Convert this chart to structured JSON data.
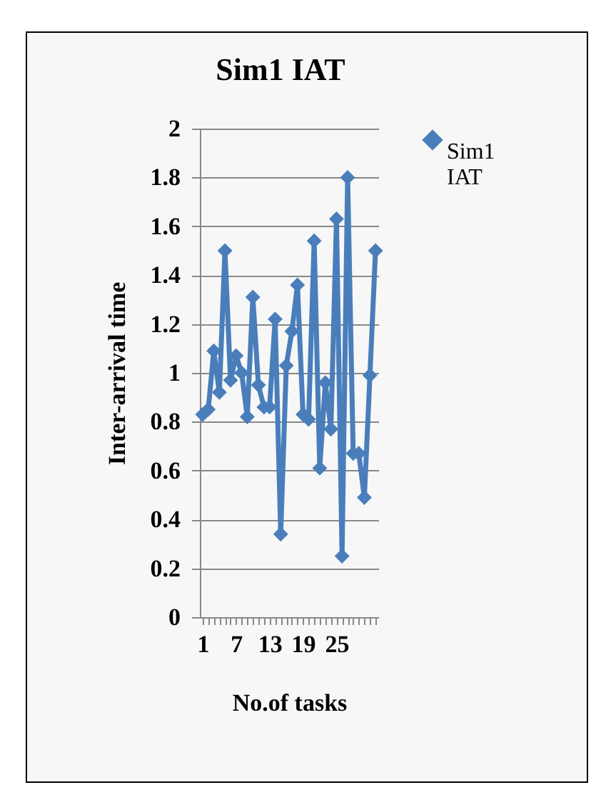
{
  "chart_data": {
    "type": "line",
    "title": "Sim1 IAT",
    "xlabel": "No.of tasks",
    "ylabel": "Inter-arrival time",
    "categories": [
      "1",
      null,
      null,
      null,
      null,
      null,
      "7",
      null,
      null,
      null,
      null,
      null,
      "13",
      null,
      null,
      null,
      null,
      null,
      "19",
      null,
      null,
      null,
      null,
      null,
      "25",
      null,
      null,
      null,
      null,
      null,
      null,
      null
    ],
    "series": [
      {
        "name": "Sim1 IAT",
        "color": "#4a7ebb",
        "values": [
          0.83,
          0.85,
          1.09,
          0.92,
          1.5,
          0.97,
          1.07,
          1.0,
          0.82,
          1.31,
          0.95,
          0.86,
          0.86,
          1.22,
          0.34,
          1.03,
          1.17,
          1.36,
          0.83,
          0.81,
          1.54,
          0.61,
          0.96,
          0.77,
          1.63,
          0.25,
          1.8,
          0.67,
          0.67,
          0.49,
          0.99,
          1.5
        ]
      }
    ],
    "ylim": [
      0,
      2
    ],
    "yticks": [
      0,
      0.2,
      0.4,
      0.6,
      0.8,
      1,
      1.2,
      1.4,
      1.6,
      1.8,
      2
    ],
    "grid": "y",
    "legend": "right",
    "marker": "diamond",
    "line_style": "solid"
  }
}
